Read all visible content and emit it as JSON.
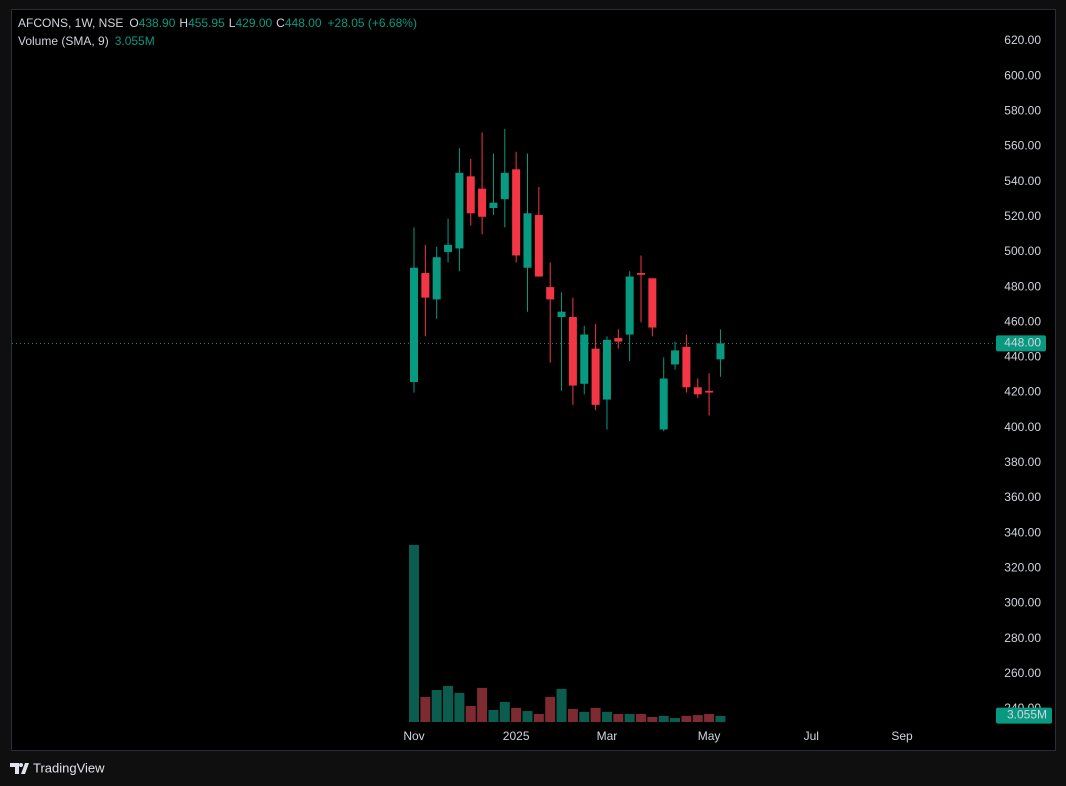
{
  "chart_data": {
    "type": "candlestick",
    "title": "AFCONS, 1W, NSE",
    "ohlc_legend": [
      {
        "key": "O",
        "value": "438.90"
      },
      {
        "key": "H",
        "value": "455.95"
      },
      {
        "key": "L",
        "value": "429.00"
      },
      {
        "key": "C",
        "value": "448.00"
      }
    ],
    "change": "+28.05 (+6.68%)",
    "categories": [
      "Nov",
      null,
      null,
      null,
      null,
      null,
      null,
      null,
      null,
      "2025",
      null,
      null,
      null,
      null,
      null,
      null,
      null,
      "Mar",
      null,
      null,
      null,
      null,
      null,
      null,
      null,
      null,
      "May",
      null,
      null,
      null,
      null,
      null,
      null,
      null,
      null,
      "Jul",
      null,
      null,
      null,
      null,
      null,
      null,
      null,
      "Sep"
    ],
    "open": [
      426,
      488,
      473,
      500,
      502,
      543,
      536,
      525,
      530,
      547,
      491,
      521,
      480,
      463,
      463,
      425,
      445,
      416,
      451,
      453,
      488,
      485,
      399,
      436,
      446,
      423,
      421,
      438.9,
      null,
      null,
      null,
      null,
      null,
      null,
      null,
      null,
      null,
      null,
      null,
      null,
      null,
      null,
      null,
      null
    ],
    "high": [
      514,
      504,
      503,
      519,
      559,
      553,
      568,
      556,
      570,
      557,
      556,
      537,
      494,
      477,
      474,
      458,
      459,
      452,
      456,
      489,
      498,
      485,
      440,
      449,
      453,
      428,
      431,
      455.95,
      null,
      null,
      null,
      null,
      null,
      null,
      null,
      null,
      null,
      null,
      null,
      null,
      null,
      null,
      null,
      null
    ],
    "low": [
      420,
      452,
      462,
      494,
      489,
      515,
      510,
      521,
      514,
      494,
      466,
      486,
      437,
      421,
      413,
      419,
      410,
      399,
      445,
      438,
      460,
      452,
      398,
      433,
      420,
      417,
      407,
      429,
      null,
      null,
      null,
      null,
      null,
      null,
      null,
      null,
      null,
      null,
      null,
      null,
      null,
      null,
      null,
      null
    ],
    "close": [
      491,
      474,
      497,
      504,
      545,
      522,
      520,
      528,
      545,
      498,
      522,
      486,
      473,
      466,
      424,
      453,
      413,
      450,
      449,
      486,
      487,
      457,
      428,
      444,
      423,
      419,
      420,
      448,
      null,
      null,
      null,
      null,
      null,
      null,
      null,
      null,
      null,
      null,
      null,
      null,
      null,
      null,
      null,
      null
    ],
    "up_color": "#089981",
    "down_color": "#f23645",
    "volume": {
      "name": "Volume (SMA, 9)",
      "values": [
        84,
        11.9,
        15.2,
        17.1,
        13.8,
        7.6,
        16.2,
        5.7,
        9.5,
        6.7,
        5.2,
        3.8,
        11.9,
        15.7,
        6.2,
        4.8,
        6.7,
        4.8,
        3.8,
        3.8,
        3.8,
        2.4,
        2.9,
        1.9,
        2.9,
        3.3,
        3.8,
        2.9,
        null,
        null,
        null,
        null,
        null,
        null,
        null,
        null,
        null,
        null,
        null,
        null,
        null,
        null,
        null,
        null
      ],
      "sma": 3.055,
      "sma_label": "3.055M",
      "up_color": "#0b5e4f",
      "down_color": "#7d2a31"
    },
    "last_price": 448,
    "last_price_label": "448.00",
    "ylim": [
      232.6,
      638.2
    ],
    "yticks": [
      {
        "value": 240,
        "label": "240.00"
      },
      {
        "value": 260,
        "label": "260.00"
      },
      {
        "value": 280,
        "label": "280.00"
      },
      {
        "value": 300,
        "label": "300.00"
      },
      {
        "value": 320,
        "label": "320.00"
      },
      {
        "value": 340,
        "label": "340.00"
      },
      {
        "value": 360,
        "label": "360.00"
      },
      {
        "value": 380,
        "label": "380.00"
      },
      {
        "value": 400,
        "label": "400.00"
      },
      {
        "value": 420,
        "label": "420.00"
      },
      {
        "value": 440,
        "label": "440.00"
      },
      {
        "value": 460,
        "label": "460.00"
      },
      {
        "value": 480,
        "label": "480.00"
      },
      {
        "value": 500,
        "label": "500.00"
      },
      {
        "value": 520,
        "label": "520.00"
      },
      {
        "value": 540,
        "label": "540.00"
      },
      {
        "value": 560,
        "label": "560.00"
      },
      {
        "value": 580,
        "label": "580.00"
      },
      {
        "value": 600,
        "label": "600.00"
      },
      {
        "value": 620,
        "label": "620.00"
      }
    ],
    "branding": "TradingView"
  }
}
